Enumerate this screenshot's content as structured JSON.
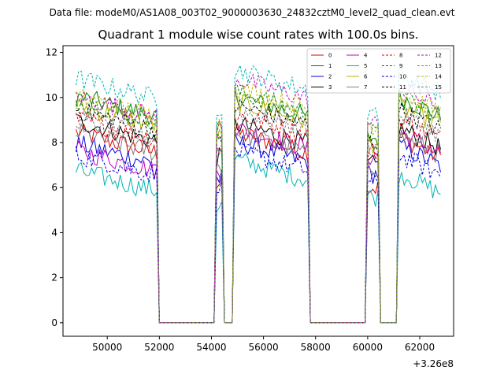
{
  "figure": {
    "suptitle": "Data file: modeM0/AS1A08_003T02_9000003630_24832cztM0_level2_quad_clean.evt"
  },
  "chart_data": {
    "type": "line",
    "title": "Quadrant 1 module wise count rates with 100.0s bins.",
    "xlabel": "",
    "ylabel": "",
    "x_offset_label": "+3.26e8",
    "x_offset": 326000000,
    "xlim": [
      48300,
      63300
    ],
    "ylim": [
      -0.6,
      12.3
    ],
    "xticks": [
      50000,
      52000,
      54000,
      56000,
      58000,
      60000,
      62000
    ],
    "xtick_labels": [
      "50000",
      "52000",
      "54000",
      "56000",
      "58000",
      "60000",
      "62000"
    ],
    "yticks": [
      0,
      2,
      4,
      6,
      8,
      10,
      12
    ],
    "ytick_labels": [
      "0",
      "2",
      "4",
      "6",
      "8",
      "10",
      "12"
    ],
    "bin_seconds": 100,
    "segments": [
      {
        "start": 48800,
        "end": 51900,
        "active": true
      },
      {
        "start": 52000,
        "end": 54100,
        "active": false
      },
      {
        "start": 54200,
        "end": 54400,
        "active": true
      },
      {
        "start": 54500,
        "end": 54800,
        "active": false
      },
      {
        "start": 54900,
        "end": 57700,
        "active": true
      },
      {
        "start": 57800,
        "end": 59900,
        "active": false
      },
      {
        "start": 60000,
        "end": 60400,
        "active": true
      },
      {
        "start": 60500,
        "end": 61100,
        "active": false
      },
      {
        "start": 61200,
        "end": 62800,
        "active": true
      }
    ],
    "legend": {
      "location": "upper right",
      "columns": 4,
      "entries": [
        "0",
        "1",
        "2",
        "3",
        "4",
        "5",
        "6",
        "7",
        "8",
        "9",
        "10",
        "11",
        "12",
        "13",
        "14",
        "15"
      ]
    },
    "series": [
      {
        "name": "0",
        "color": "#e00000",
        "dash": "solid",
        "levels": [
          8.0,
          6.3,
          8.0,
          6.0,
          7.8,
          7.6,
          7.0
        ]
      },
      {
        "name": "1",
        "color": "#008000",
        "dash": "solid",
        "levels": [
          9.6,
          8.5,
          9.6,
          8.2,
          9.6,
          9.4,
          8.6
        ]
      },
      {
        "name": "2",
        "color": "#0000e0",
        "dash": "solid",
        "levels": [
          7.5,
          6.4,
          7.6,
          6.6,
          7.4,
          7.2,
          6.8
        ]
      },
      {
        "name": "3",
        "color": "#000000",
        "dash": "solid",
        "levels": [
          8.5,
          7.3,
          8.4,
          7.0,
          8.2,
          8.0,
          7.4
        ]
      },
      {
        "name": "4",
        "color": "#c000c0",
        "dash": "solid",
        "levels": [
          7.2,
          6.6,
          8.2,
          7.4,
          8.0,
          7.8,
          7.4
        ]
      },
      {
        "name": "5",
        "color": "#00b4b4",
        "dash": "solid",
        "levels": [
          6.3,
          5.2,
          6.8,
          5.6,
          6.2,
          6.0,
          5.5
        ]
      },
      {
        "name": "6",
        "color": "#b4b400",
        "dash": "solid",
        "levels": [
          9.2,
          8.2,
          9.4,
          8.0,
          9.2,
          9.0,
          8.4
        ]
      },
      {
        "name": "7",
        "color": "#808080",
        "dash": "solid",
        "levels": [
          8.0,
          7.0,
          8.0,
          6.9,
          7.9,
          7.6,
          7.1
        ]
      },
      {
        "name": "8",
        "color": "#e00000",
        "dash": "dashed",
        "levels": [
          8.6,
          7.6,
          8.8,
          7.6,
          8.6,
          8.4,
          8.0
        ]
      },
      {
        "name": "9",
        "color": "#008000",
        "dash": "dashed",
        "levels": [
          9.4,
          8.4,
          9.8,
          8.4,
          9.6,
          9.4,
          8.6
        ]
      },
      {
        "name": "10",
        "color": "#0000e0",
        "dash": "dashed",
        "levels": [
          7.0,
          6.2,
          7.2,
          6.2,
          7.0,
          6.8,
          6.4
        ]
      },
      {
        "name": "11",
        "color": "#000000",
        "dash": "dashed",
        "levels": [
          9.0,
          8.0,
          9.2,
          8.0,
          9.0,
          8.8,
          8.2
        ]
      },
      {
        "name": "12",
        "color": "#c000c0",
        "dash": "dashed",
        "levels": [
          9.6,
          8.6,
          10.4,
          8.8,
          10.0,
          9.8,
          9.0
        ]
      },
      {
        "name": "13",
        "color": "#00b4b4",
        "dash": "dashed",
        "levels": [
          10.4,
          9.6,
          10.8,
          9.4,
          10.6,
          10.8,
          10.0
        ]
      },
      {
        "name": "14",
        "color": "#b4b400",
        "dash": "dashed",
        "levels": [
          9.6,
          8.8,
          10.0,
          8.8,
          9.8,
          9.6,
          8.8
        ]
      },
      {
        "name": "15",
        "color": "#808080",
        "dash": "dashed",
        "levels": [
          8.6,
          7.8,
          9.0,
          7.8,
          8.8,
          8.6,
          7.8
        ]
      }
    ]
  }
}
